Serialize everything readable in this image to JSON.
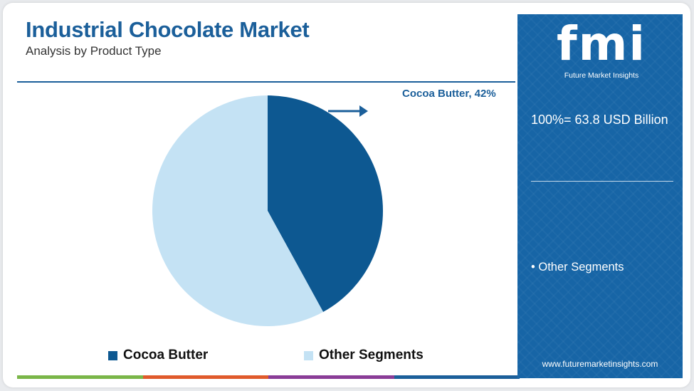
{
  "header": {
    "title": "Industrial Chocolate Market",
    "subtitle": "Analysis by Product Type"
  },
  "chart_data": {
    "type": "pie",
    "categories": [
      "Cocoa Butter",
      "Other Segments"
    ],
    "values": [
      42,
      58
    ],
    "colors": [
      "#0d5891",
      "#c4e2f4"
    ],
    "legend_position": "bottom",
    "annotations": [
      {
        "label": "Cocoa Butter, 42%"
      }
    ]
  },
  "legend": {
    "items": [
      {
        "label": "Cocoa Butter",
        "color": "#0d5891"
      },
      {
        "label": "Other Segments",
        "color": "#c4e2f4"
      }
    ]
  },
  "side_panel": {
    "logo_text": "fmi",
    "logo_tagline": "Future Market Insights",
    "total_label": "100%= 63.8 USD Billion",
    "bullet": "• Other Segments",
    "url": "www.futuremarketinsights.com",
    "background_color": "#1765a6"
  },
  "bottom_bar_colors": [
    "#7ab648",
    "#e05a2b",
    "#8a3c97",
    "#1b5f9a"
  ]
}
